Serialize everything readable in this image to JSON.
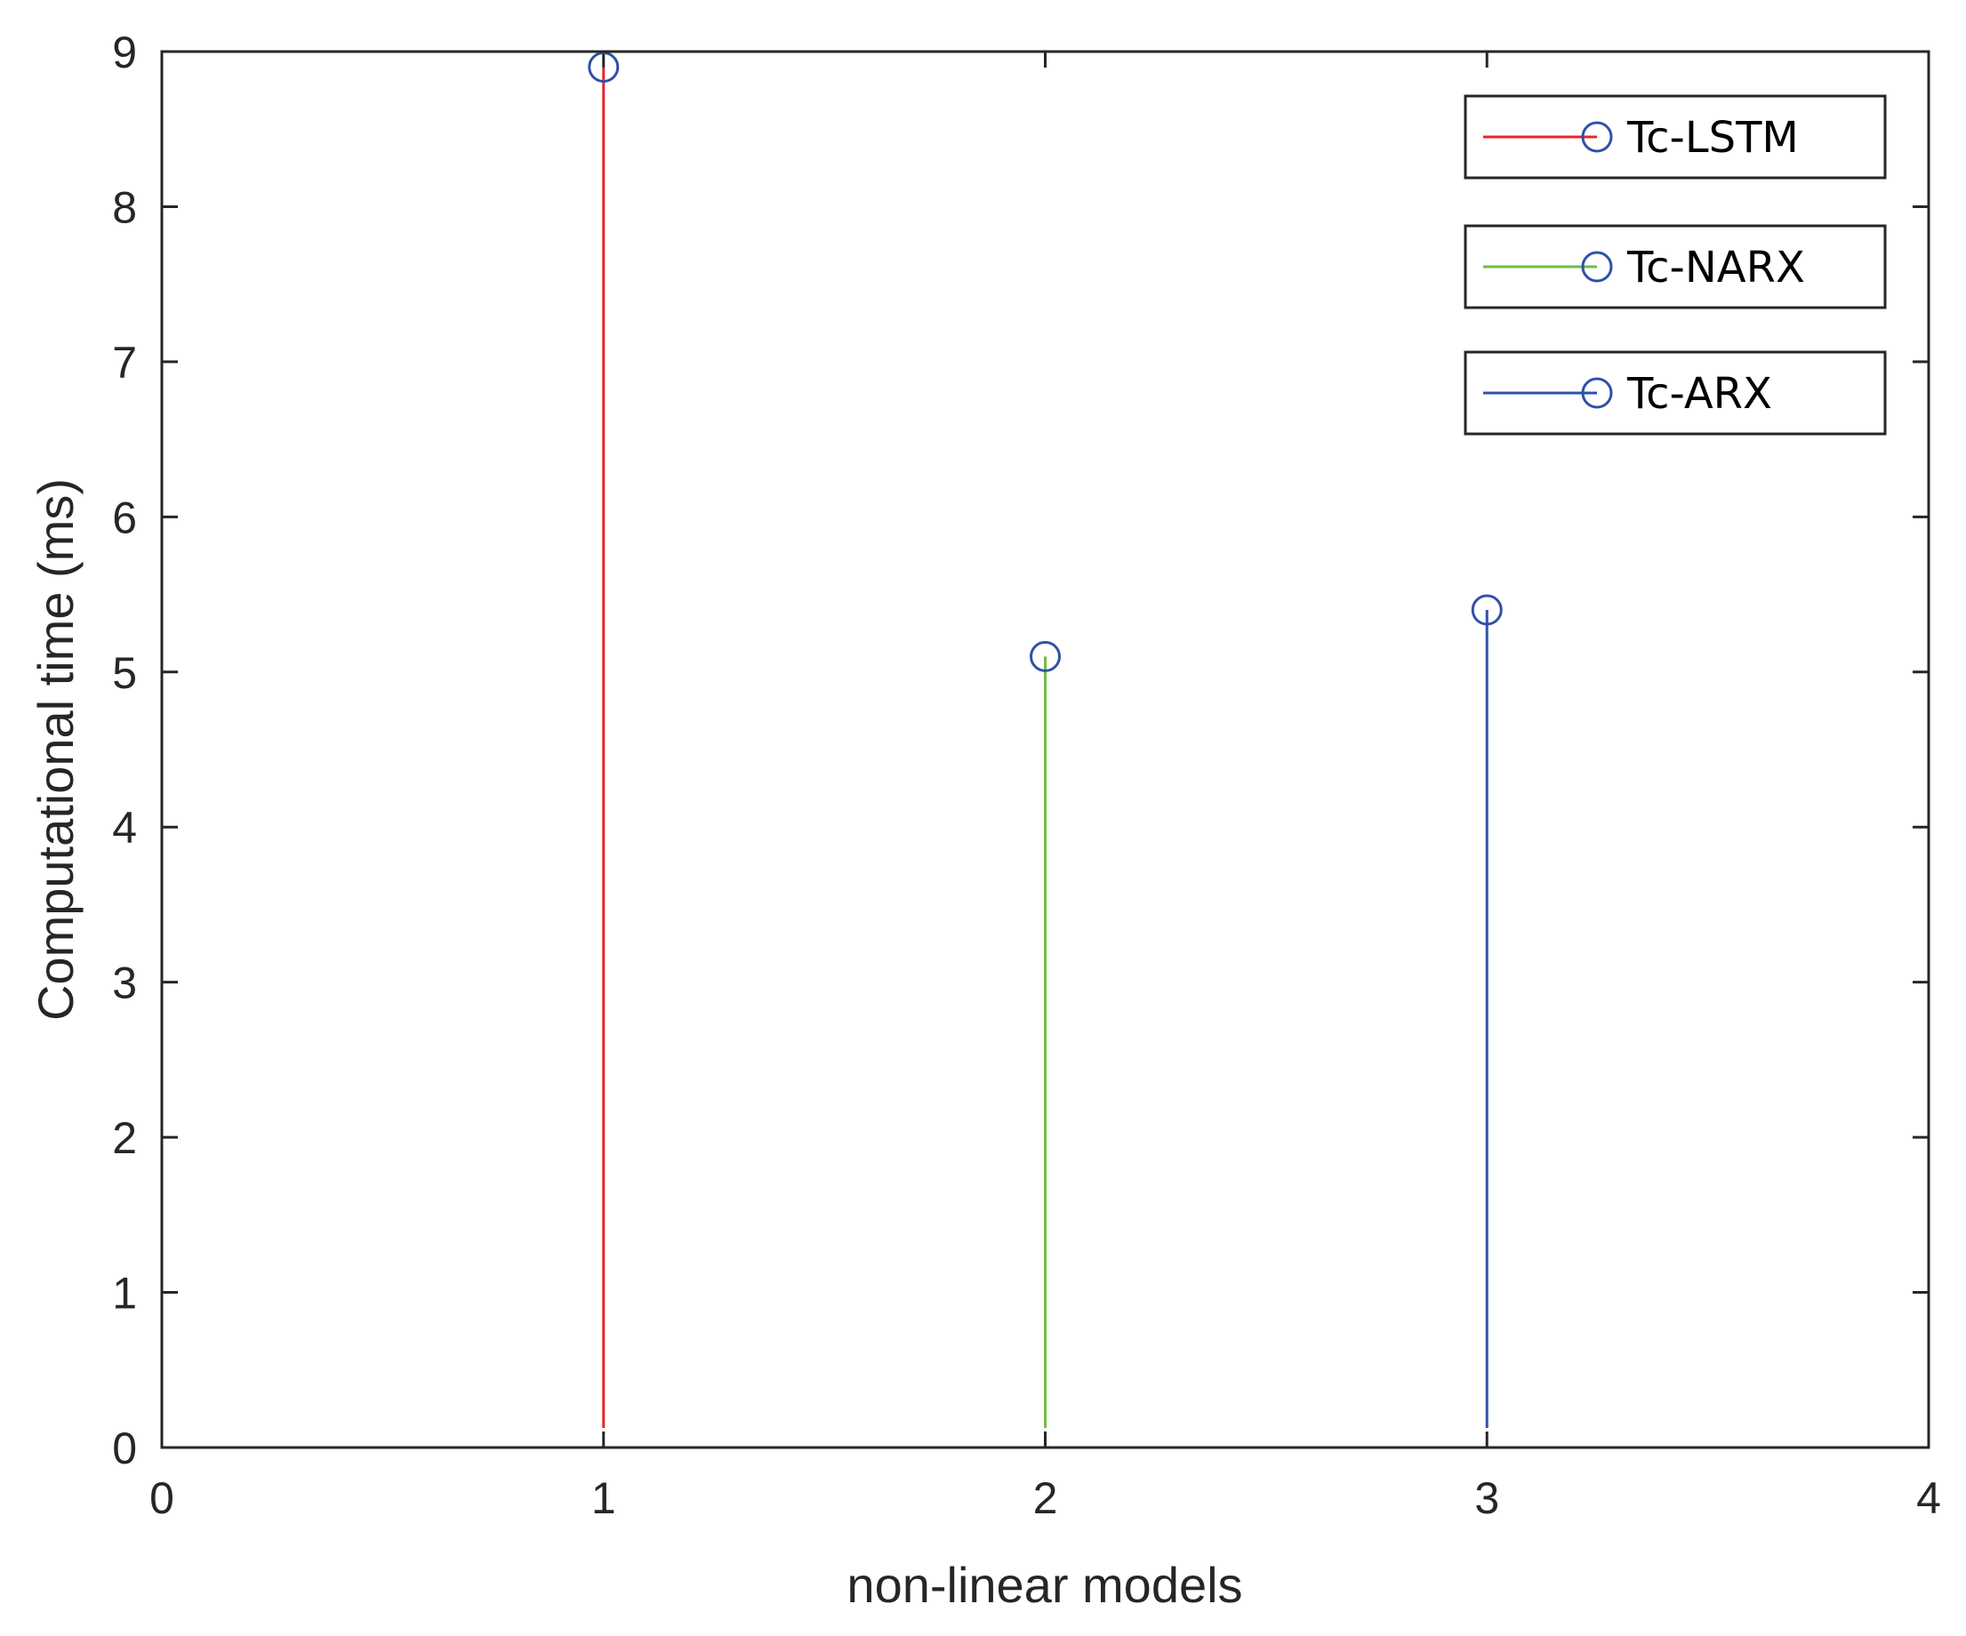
{
  "chart_data": {
    "type": "stem",
    "xlabel": "non-linear models",
    "ylabel": "Computational time (ms)",
    "xlim": [
      0,
      4
    ],
    "ylim": [
      0,
      9
    ],
    "x_ticks": [
      "0",
      "1",
      "2",
      "3",
      "4"
    ],
    "y_ticks": [
      "0",
      "1",
      "2",
      "3",
      "4",
      "5",
      "6",
      "7",
      "8",
      "9"
    ],
    "grid": false,
    "legend_position": "top-right",
    "marker_color": "#3050a8",
    "series": [
      {
        "name": "Tc-LSTM",
        "x": 1,
        "y": 8.9,
        "color": "#e8262b"
      },
      {
        "name": "Tc-NARX",
        "x": 2,
        "y": 5.1,
        "color": "#72bc44"
      },
      {
        "name": "Tc-ARX",
        "x": 3,
        "y": 5.4,
        "color": "#3050a8"
      }
    ]
  }
}
